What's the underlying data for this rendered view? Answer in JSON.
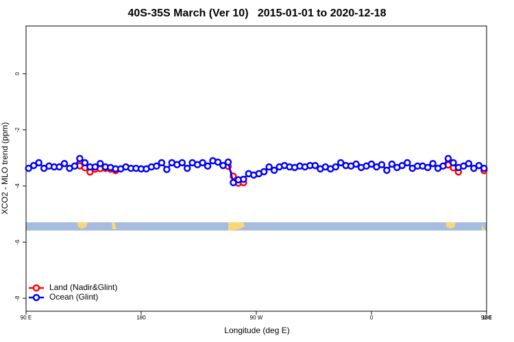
{
  "chart_data": {
    "type": "line",
    "title": "40S-35S March (Ver 10)   2015-01-01 to 2020-12-18",
    "x_label": "Longitude (deg E)",
    "y_label": "XCO2 - MLO trend (ppm)",
    "x": [
      92,
      96,
      100,
      104,
      108,
      112,
      116,
      120,
      124,
      128,
      132,
      136,
      140,
      144,
      148,
      152,
      156,
      160,
      164,
      168,
      172,
      176,
      180,
      184,
      188,
      192,
      196,
      200,
      204,
      208,
      212,
      216,
      220,
      224,
      228,
      232,
      236,
      240,
      244,
      248,
      252,
      256,
      260,
      264,
      268,
      272,
      276,
      280,
      284,
      288,
      292,
      296,
      300,
      304,
      308,
      312,
      316,
      320,
      324,
      328,
      332,
      336,
      340,
      344,
      348,
      352,
      356,
      360,
      364,
      368,
      372,
      376,
      380,
      384,
      388,
      392,
      396,
      400,
      404,
      408,
      412,
      416,
      420,
      424,
      428,
      432,
      436,
      440,
      444,
      448
    ],
    "series": [
      {
        "name": "Land (Nadir&Glint)",
        "color": "#ff0000",
        "values": [
          null,
          null,
          null,
          null,
          null,
          null,
          null,
          null,
          null,
          null,
          -3.28,
          -3.35,
          -3.5,
          -3.4,
          -3.38,
          -3.37,
          -3.4,
          -3.45,
          null,
          null,
          null,
          null,
          null,
          null,
          null,
          null,
          null,
          null,
          null,
          null,
          null,
          null,
          null,
          null,
          null,
          null,
          null,
          null,
          null,
          -3.3,
          -3.65,
          -3.9,
          -3.88,
          null,
          null,
          null,
          null,
          null,
          null,
          null,
          null,
          null,
          null,
          null,
          null,
          null,
          null,
          null,
          null,
          null,
          null,
          null,
          null,
          null,
          null,
          null,
          null,
          null,
          null,
          null,
          null,
          null,
          null,
          null,
          null,
          null,
          null,
          null,
          null,
          null,
          null,
          null,
          -3.25,
          -3.35,
          -3.5,
          null,
          null,
          null,
          null,
          -3.45
        ]
      },
      {
        "name": "Ocean (Glint)",
        "color": "#0000ff",
        "values": [
          -3.37,
          -3.27,
          -3.17,
          -3.37,
          -3.29,
          -3.32,
          -3.32,
          -3.2,
          -3.37,
          -3.29,
          -3.02,
          -3.17,
          -3.32,
          -3.32,
          -3.2,
          -3.32,
          -3.34,
          -3.39,
          -3.39,
          -3.32,
          -3.37,
          -3.37,
          -3.39,
          -3.39,
          -3.32,
          -3.29,
          -3.17,
          -3.41,
          -3.17,
          -3.24,
          -3.17,
          -3.37,
          -3.17,
          -3.24,
          -3.17,
          -3.29,
          -3.1,
          -3.15,
          -3.27,
          -3.15,
          -3.88,
          -3.78,
          -3.76,
          -3.56,
          -3.61,
          -3.56,
          -3.49,
          -3.32,
          -3.44,
          -3.32,
          -3.27,
          -3.32,
          -3.34,
          -3.29,
          -3.32,
          -3.27,
          -3.27,
          -3.39,
          -3.32,
          -3.39,
          -3.32,
          -3.17,
          -3.27,
          -3.29,
          -3.22,
          -3.34,
          -3.29,
          -3.22,
          -3.32,
          -3.24,
          -3.44,
          -3.22,
          -3.34,
          -3.27,
          -3.17,
          -3.37,
          -3.29,
          -3.29,
          -3.34,
          -3.2,
          -3.37,
          -3.29,
          -3.02,
          -3.17,
          -3.34,
          -3.29,
          -3.2,
          -3.37,
          -3.27,
          -3.37
        ]
      }
    ],
    "xlim": [
      90,
      450
    ],
    "xticks": [
      {
        "value": 90,
        "label": "90 E"
      },
      180,
      {
        "value": 270,
        "label": "90 W"
      },
      {
        "value": 360,
        "label": "0"
      },
      {
        "value": 450,
        "label": "90 E"
      },
      {
        "value": 540,
        "label": "180"
      }
    ],
    "ylim": [
      -8.46,
      1.7
    ],
    "yticks": [
      0,
      -2,
      -4,
      -6,
      -8
    ],
    "legend": "bottom-left"
  }
}
